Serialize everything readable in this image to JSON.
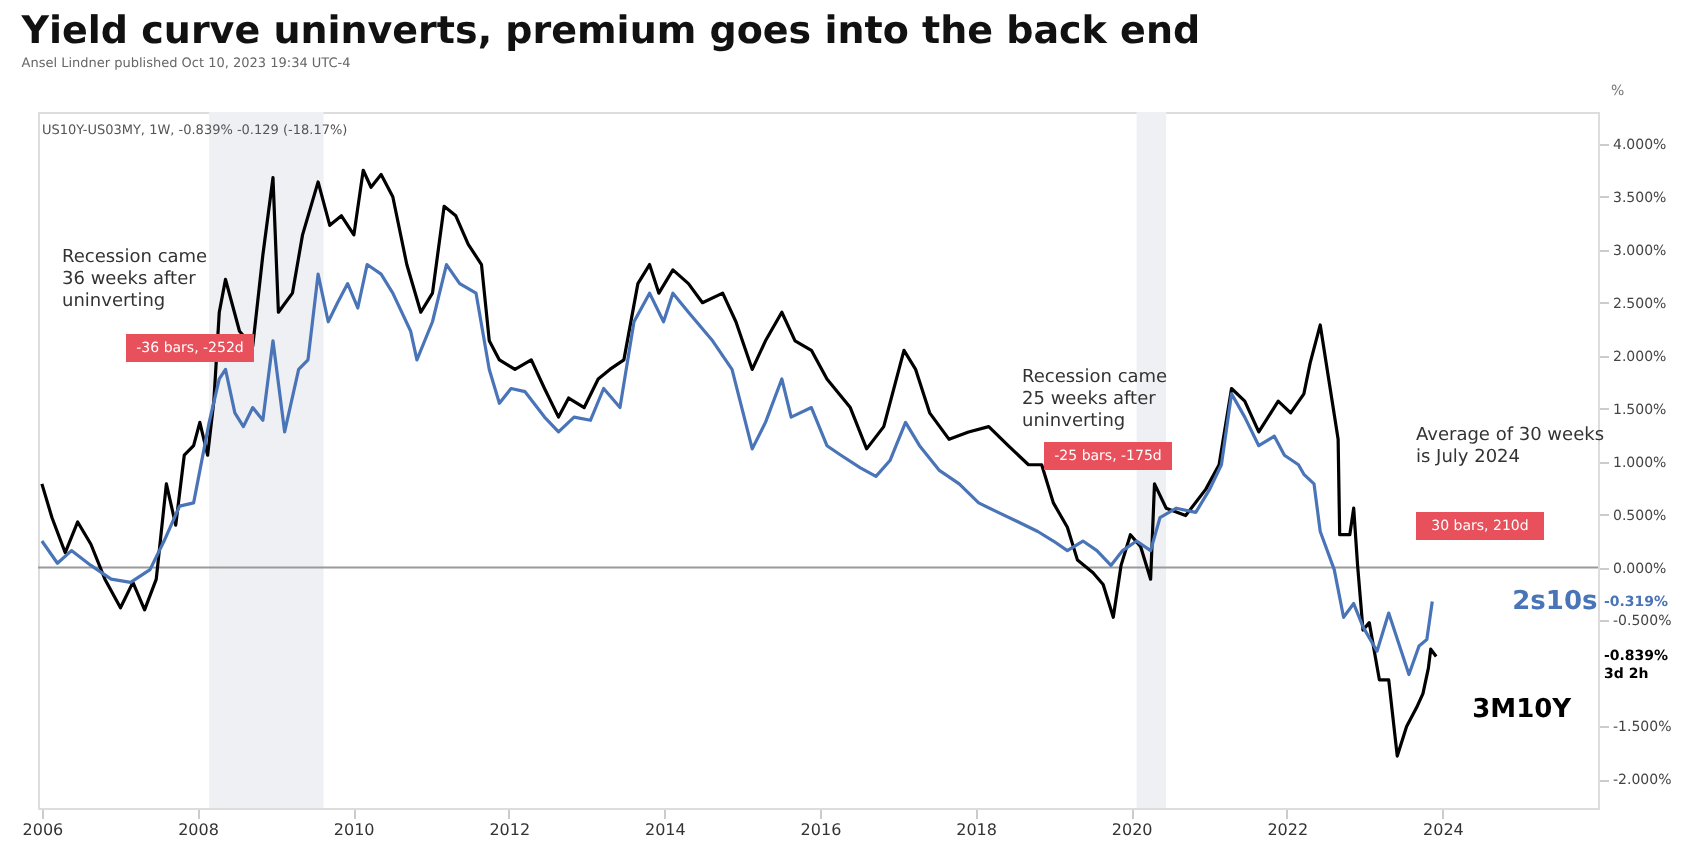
{
  "chart_data": {
    "type": "line",
    "title": "Yield curve uninverts, premium goes into the back end",
    "subtitle": "Ansel Lindner published Oct 10, 2023 19:34 UTC-4",
    "ylabel": "%",
    "xlim": [
      2005.95,
      2026.0
    ],
    "xticks": [
      2006,
      2008,
      2010,
      2012,
      2014,
      2016,
      2018,
      2020,
      2022,
      2024
    ],
    "ylim": [
      -2.27,
      4.3
    ],
    "yticks": [
      {
        "value": 4,
        "label": "4.000%"
      },
      {
        "value": 3.5,
        "label": "3.500%"
      },
      {
        "value": 3,
        "label": "3.000%"
      },
      {
        "value": 2.5,
        "label": "2.500%"
      },
      {
        "value": 2,
        "label": "2.000%"
      },
      {
        "value": 1.5,
        "label": "1.500%"
      },
      {
        "value": 1,
        "label": "1.000%"
      },
      {
        "value": 0.5,
        "label": "0.500%"
      },
      {
        "value": 0,
        "label": "0.000%"
      },
      {
        "value": -0.5,
        "label": "-0.500%"
      },
      {
        "value": -1.5,
        "label": "-1.500%"
      },
      {
        "value": -2,
        "label": "-2.000%"
      }
    ],
    "grid": false,
    "legend": false,
    "line_style": "solid",
    "marker": "none",
    "bands": [
      {
        "axis": "x",
        "from": 2008.15,
        "to": 2009.62,
        "color": "#eff0f4"
      },
      {
        "axis": "x",
        "from": 2020.07,
        "to": 2020.45,
        "color": "#eff0f4"
      }
    ],
    "ref_lines": [
      {
        "axis": "y",
        "value": 0,
        "color": "#9a9a9a"
      }
    ],
    "annotations": [
      "US10Y-US03MY, 1W, -0.839%  -0.129 (-18.17%)",
      "Recession came\n36 weeks after\nuninverting",
      "-36 bars, -252d",
      "Recession came\n25 weeks after\nuninverting",
      "-25 bars, -175d",
      "Average of 30 weeks\nis July 2024",
      "30 bars, 210d",
      "-0.319%",
      "-0.839%\n3d 2h"
    ],
    "series": [
      {
        "name": "3M10Y",
        "color": "#000000",
        "x": [
          2006.0,
          2006.13,
          2006.3,
          2006.46,
          2006.63,
          2006.81,
          2007.01,
          2007.17,
          2007.32,
          2007.47,
          2007.6,
          2007.72,
          2007.83,
          2007.95,
          2008.03,
          2008.13,
          2008.21,
          2008.28,
          2008.36,
          2008.54,
          2008.71,
          2008.84,
          2008.97,
          2009.04,
          2009.22,
          2009.35,
          2009.55,
          2009.7,
          2009.85,
          2010.01,
          2010.13,
          2010.23,
          2010.36,
          2010.51,
          2010.69,
          2010.87,
          2011.02,
          2011.17,
          2011.32,
          2011.48,
          2011.65,
          2011.75,
          2011.88,
          2012.08,
          2012.29,
          2012.46,
          2012.64,
          2012.77,
          2012.97,
          2013.15,
          2013.3,
          2013.48,
          2013.66,
          2013.81,
          2013.93,
          2014.11,
          2014.31,
          2014.49,
          2014.75,
          2014.92,
          2015.13,
          2015.3,
          2015.51,
          2015.68,
          2015.89,
          2016.09,
          2016.39,
          2016.6,
          2016.82,
          2017.08,
          2017.23,
          2017.41,
          2017.66,
          2017.91,
          2018.17,
          2018.42,
          2018.68,
          2018.85,
          2019.0,
          2019.18,
          2019.31,
          2019.51,
          2019.64,
          2019.77,
          2019.87,
          2019.99,
          2020.12,
          2020.25,
          2020.3,
          2020.45,
          2020.7,
          2020.96,
          2021.13,
          2021.29,
          2021.46,
          2021.64,
          2021.89,
          2022.05,
          2022.22,
          2022.3,
          2022.43,
          2022.53,
          2022.66,
          2022.68,
          2022.81,
          2022.86,
          2022.91,
          2022.98,
          2023.06,
          2023.19,
          2023.31,
          2023.42,
          2023.54,
          2023.67,
          2023.75,
          2023.82,
          2023.85,
          2023.92
        ],
        "values": [
          0.79,
          0.47,
          0.14,
          0.43,
          0.22,
          -0.11,
          -0.38,
          -0.14,
          -0.4,
          -0.11,
          0.79,
          0.4,
          1.06,
          1.15,
          1.37,
          1.06,
          1.57,
          2.41,
          2.72,
          2.23,
          2.09,
          2.95,
          3.68,
          2.41,
          2.59,
          3.14,
          3.64,
          3.23,
          3.32,
          3.14,
          3.75,
          3.59,
          3.71,
          3.5,
          2.86,
          2.41,
          2.59,
          3.41,
          3.32,
          3.05,
          2.86,
          2.14,
          1.96,
          1.87,
          1.96,
          1.69,
          1.42,
          1.6,
          1.51,
          1.78,
          1.87,
          1.96,
          2.68,
          2.86,
          2.59,
          2.81,
          2.68,
          2.5,
          2.59,
          2.32,
          1.87,
          2.14,
          2.41,
          2.14,
          2.05,
          1.78,
          1.51,
          1.12,
          1.33,
          2.05,
          1.87,
          1.46,
          1.21,
          1.28,
          1.33,
          1.15,
          0.97,
          0.97,
          0.61,
          0.38,
          0.07,
          -0.05,
          -0.16,
          -0.47,
          0.02,
          0.31,
          0.2,
          -0.11,
          0.79,
          0.56,
          0.49,
          0.74,
          0.97,
          1.69,
          1.57,
          1.28,
          1.57,
          1.46,
          1.64,
          1.93,
          2.29,
          1.82,
          1.21,
          0.31,
          0.31,
          0.56,
          0.02,
          -0.59,
          -0.52,
          -1.06,
          -1.06,
          -1.78,
          -1.5,
          -1.32,
          -1.19,
          -0.95,
          -0.77,
          -0.84
        ]
      },
      {
        "name": "2s10s",
        "color": "#4a74b8",
        "x": [
          2006.0,
          2006.2,
          2006.38,
          2006.63,
          2006.89,
          2007.14,
          2007.39,
          2007.57,
          2007.77,
          2007.95,
          2008.15,
          2008.28,
          2008.36,
          2008.48,
          2008.59,
          2008.71,
          2008.84,
          2008.97,
          2009.12,
          2009.3,
          2009.42,
          2009.55,
          2009.68,
          2009.8,
          2009.93,
          2010.06,
          2010.18,
          2010.36,
          2010.51,
          2010.74,
          2010.82,
          2011.02,
          2011.2,
          2011.37,
          2011.58,
          2011.75,
          2011.88,
          2012.03,
          2012.21,
          2012.46,
          2012.64,
          2012.84,
          2013.05,
          2013.22,
          2013.43,
          2013.61,
          2013.81,
          2013.99,
          2014.11,
          2014.31,
          2014.62,
          2014.87,
          2015.13,
          2015.3,
          2015.51,
          2015.63,
          2015.89,
          2016.09,
          2016.27,
          2016.52,
          2016.72,
          2016.9,
          2017.1,
          2017.28,
          2017.53,
          2017.79,
          2018.04,
          2018.29,
          2018.55,
          2018.8,
          2019.0,
          2019.18,
          2019.38,
          2019.56,
          2019.74,
          2019.89,
          2020.07,
          2020.25,
          2020.37,
          2020.58,
          2020.83,
          2021.01,
          2021.16,
          2021.29,
          2021.46,
          2021.64,
          2021.84,
          2021.97,
          2022.15,
          2022.22,
          2022.35,
          2022.43,
          2022.61,
          2022.73,
          2022.86,
          2022.98,
          2023.16,
          2023.31,
          2023.49,
          2023.57,
          2023.7,
          2023.8,
          2023.87
        ],
        "values": [
          0.25,
          0.04,
          0.16,
          0.02,
          -0.11,
          -0.14,
          -0.02,
          0.25,
          0.58,
          0.61,
          1.37,
          1.78,
          1.87,
          1.46,
          1.33,
          1.51,
          1.39,
          2.14,
          1.28,
          1.87,
          1.96,
          2.77,
          2.32,
          2.5,
          2.68,
          2.45,
          2.86,
          2.77,
          2.59,
          2.23,
          1.96,
          2.32,
          2.86,
          2.68,
          2.59,
          1.87,
          1.55,
          1.69,
          1.66,
          1.42,
          1.28,
          1.42,
          1.39,
          1.69,
          1.51,
          2.32,
          2.59,
          2.32,
          2.59,
          2.41,
          2.14,
          1.87,
          1.12,
          1.37,
          1.78,
          1.42,
          1.51,
          1.15,
          1.06,
          0.94,
          0.86,
          1.01,
          1.37,
          1.15,
          0.92,
          0.79,
          0.61,
          0.52,
          0.43,
          0.34,
          0.25,
          0.16,
          0.25,
          0.16,
          0.02,
          0.16,
          0.25,
          0.16,
          0.47,
          0.56,
          0.52,
          0.74,
          0.97,
          1.64,
          1.42,
          1.15,
          1.24,
          1.06,
          0.97,
          0.88,
          0.79,
          0.34,
          -0.02,
          -0.47,
          -0.34,
          -0.56,
          -0.79,
          -0.43,
          -0.83,
          -1.01,
          -0.74,
          -0.68,
          -0.32
        ]
      }
    ]
  }
}
